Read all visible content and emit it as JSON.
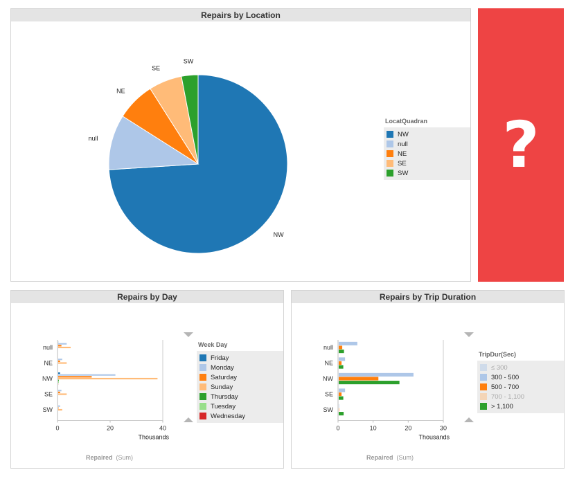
{
  "top_panel": {
    "title": "Repairs by Location",
    "legend_title": "LocatQuadran",
    "legend": [
      {
        "label": "NW",
        "color": "#1f77b4"
      },
      {
        "label": "null",
        "color": "#aec7e8"
      },
      {
        "label": "NE",
        "color": "#ff7f0e"
      },
      {
        "label": "SE",
        "color": "#ffbb78"
      },
      {
        "label": "SW",
        "color": "#2ca02c"
      }
    ]
  },
  "red_box": {
    "glyph": "?",
    "color": "#ee4444"
  },
  "day_panel": {
    "title": "Repairs by Day",
    "legend_title": "Week Day",
    "legend": [
      {
        "label": "Friday",
        "color": "#1f77b4"
      },
      {
        "label": "Monday",
        "color": "#aec7e8"
      },
      {
        "label": "Saturday",
        "color": "#ff7f0e"
      },
      {
        "label": "Sunday",
        "color": "#ffbb78"
      },
      {
        "label": "Thursday",
        "color": "#2ca02c"
      },
      {
        "label": "Tuesday",
        "color": "#98df8a"
      },
      {
        "label": "Wednesday",
        "color": "#d62728"
      }
    ],
    "footer_measure": "Repaired",
    "footer_agg": "(Sum)"
  },
  "trip_panel": {
    "title": "Repairs by Trip Duration",
    "legend_title": "TripDur(Sec)",
    "legend": [
      {
        "label": "≤ 300",
        "color": "#aec7e8",
        "dimmed": true
      },
      {
        "label": "300 - 500",
        "color": "#aec7e8",
        "dimmed": false
      },
      {
        "label": "500 - 700",
        "color": "#ff7f0e",
        "dimmed": false
      },
      {
        "label": "700 - 1,100",
        "color": "#ffbb78",
        "dimmed": true
      },
      {
        "label": "> 1,100",
        "color": "#2ca02c",
        "dimmed": false
      }
    ],
    "footer_measure": "Repaired",
    "footer_agg": "(Sum)"
  },
  "chart_data": [
    {
      "type": "pie",
      "title": "Repairs by Location",
      "slices": [
        {
          "label": "NW",
          "value": 74,
          "color": "#1f77b4"
        },
        {
          "label": "null",
          "value": 10,
          "color": "#aec7e8"
        },
        {
          "label": "NE",
          "value": 7,
          "color": "#ff7f0e"
        },
        {
          "label": "SE",
          "value": 6,
          "color": "#ffbb78"
        },
        {
          "label": "SW",
          "value": 3,
          "color": "#2ca02c"
        }
      ]
    },
    {
      "type": "bar",
      "orientation": "horizontal",
      "title": "Repairs by Day",
      "categories": [
        "null",
        "NE",
        "NW",
        "SE",
        "SW"
      ],
      "xlabel": "Thousands",
      "xlim": [
        0,
        40
      ],
      "xticks": [
        0,
        20,
        40
      ],
      "series": [
        {
          "name": "Friday",
          "color": "#1f77b4",
          "values": [
            0.3,
            0.2,
            1.0,
            0.2,
            0.1
          ]
        },
        {
          "name": "Monday",
          "color": "#aec7e8",
          "values": [
            3.5,
            1.8,
            22,
            1.5,
            1.0
          ]
        },
        {
          "name": "Saturday",
          "color": "#ff7f0e",
          "values": [
            1.5,
            1.0,
            13,
            1.0,
            0.4
          ]
        },
        {
          "name": "Sunday",
          "color": "#ffbb78",
          "values": [
            5,
            3.5,
            38,
            3.5,
            1.8
          ]
        },
        {
          "name": "Thursday",
          "color": "#2ca02c",
          "values": [
            0.2,
            0.1,
            0.5,
            0.1,
            0.1
          ]
        },
        {
          "name": "Tuesday",
          "color": "#98df8a",
          "values": [
            0.2,
            0.1,
            0.5,
            0.1,
            0.1
          ]
        },
        {
          "name": "Wednesday",
          "color": "#d62728",
          "values": [
            0.1,
            0.1,
            0.3,
            0.1,
            0.1
          ]
        }
      ]
    },
    {
      "type": "bar",
      "orientation": "horizontal",
      "title": "Repairs by Trip Duration",
      "categories": [
        "null",
        "NE",
        "NW",
        "SE",
        "SW"
      ],
      "xlabel": "Thousands",
      "xlim": [
        0,
        30
      ],
      "xticks": [
        0,
        10,
        20,
        30
      ],
      "series": [
        {
          "name": "300 - 500",
          "color": "#aec7e8",
          "values": [
            5.5,
            2,
            21.5,
            2,
            0.3
          ]
        },
        {
          "name": "500 - 700",
          "color": "#ff7f0e",
          "values": [
            1.2,
            1.0,
            11.5,
            1.0,
            0.3
          ]
        },
        {
          "name": "> 1,100",
          "color": "#2ca02c",
          "values": [
            1.7,
            1.5,
            17.5,
            1.5,
            1.6
          ]
        }
      ]
    }
  ]
}
